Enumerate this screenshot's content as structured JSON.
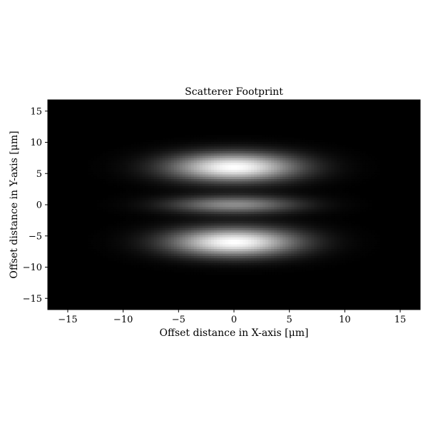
{
  "chart_data": {
    "type": "heatmap",
    "title": "Scatterer Footprint",
    "xlabel": "Offset distance in X-axis [μm]",
    "ylabel": "Offset distance in Y-axis [μm]",
    "xlim": [
      -16.8,
      16.8
    ],
    "ylim": [
      -16.8,
      16.8
    ],
    "xticks": [
      -15,
      -10,
      -5,
      0,
      5,
      10,
      15
    ],
    "yticks": [
      -15,
      -10,
      -5,
      0,
      5,
      10,
      15
    ],
    "xtick_labels": [
      "−15",
      "−10",
      "−5",
      "0",
      "5",
      "10",
      "15"
    ],
    "ytick_labels": [
      "−15",
      "−10",
      "−5",
      "0",
      "5",
      "10",
      "15"
    ],
    "colormap": "gray",
    "background_value": 0,
    "lobes": [
      {
        "x_center": 0,
        "y_center": 6,
        "sigma_x": 4,
        "sigma_y": 1.6,
        "peak": 1.0
      },
      {
        "x_center": 0,
        "y_center": 0,
        "sigma_x": 4,
        "sigma_y": 1.0,
        "peak": 0.55
      },
      {
        "x_center": 0,
        "y_center": -6,
        "sigma_x": 4,
        "sigma_y": 1.6,
        "peak": 1.0
      }
    ]
  }
}
